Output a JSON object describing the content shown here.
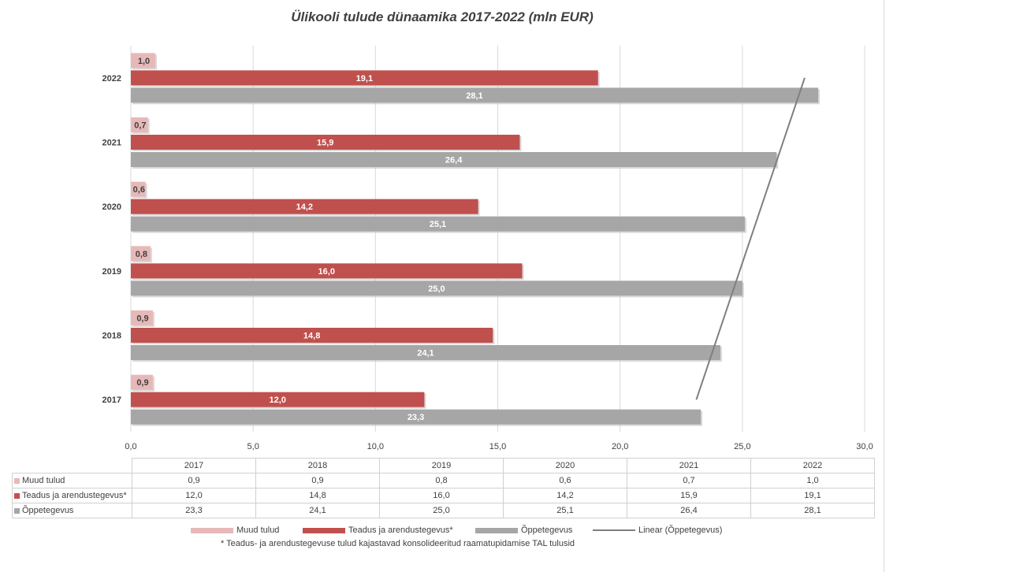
{
  "title": "Ülikooli tulude dünaamika 2017-2022 (mln EUR)",
  "colors": {
    "muud": "#e6b9b8",
    "teadus": "#c0504d",
    "oppe": "#a6a6a6",
    "trend": "#7f7f7f",
    "grid": "#d9d9d9"
  },
  "chart_data": {
    "type": "bar",
    "orientation": "horizontal",
    "title": "Ülikooli tulude dünaamika 2017-2022 (mln EUR)",
    "categories": [
      "2017",
      "2018",
      "2019",
      "2020",
      "2021",
      "2022"
    ],
    "series": [
      {
        "name": "Muud tulud",
        "values": [
          0.9,
          0.9,
          0.8,
          0.6,
          0.7,
          1.0
        ],
        "labels": [
          "0,9",
          "0,9",
          "0,8",
          "0,6",
          "0,7",
          "1,0"
        ]
      },
      {
        "name": "Teadus ja arendustegevus*",
        "values": [
          12.0,
          14.8,
          16.0,
          14.2,
          15.9,
          19.1
        ],
        "labels": [
          "12,0",
          "14,8",
          "16,0",
          "14,2",
          "15,9",
          "19,1"
        ]
      },
      {
        "name": "Õppetegevus",
        "values": [
          23.3,
          24.1,
          25.0,
          25.1,
          26.4,
          28.1
        ],
        "labels": [
          "23,3",
          "24,1",
          "25,0",
          "25,1",
          "26,4",
          "28,1"
        ]
      }
    ],
    "xlim": [
      0,
      30
    ],
    "xticks": [
      "0,0",
      "5,0",
      "10,0",
      "15,0",
      "20,0",
      "25,0",
      "30,0"
    ],
    "trendline": {
      "name": "Linear (Õppetegevus)",
      "series": "Õppetegevus",
      "type": "linear"
    },
    "grid": true,
    "legend": "bottom"
  },
  "table": {
    "years": [
      "2017",
      "2018",
      "2019",
      "2020",
      "2021",
      "2022"
    ],
    "rows": [
      {
        "label": "Muud tulud",
        "values": [
          "0,9",
          "0,9",
          "0,8",
          "0,6",
          "0,7",
          "1,0"
        ]
      },
      {
        "label": "Teadus ja arendustegevus*",
        "values": [
          "12,0",
          "14,8",
          "16,0",
          "14,2",
          "15,9",
          "19,1"
        ]
      },
      {
        "label": "Õppetegevus",
        "values": [
          "23,3",
          "24,1",
          "25,0",
          "25,1",
          "26,4",
          "28,1"
        ]
      }
    ]
  },
  "legend": {
    "muud": "Muud tulud",
    "teadus": "Teadus ja arendustegevus*",
    "oppe": "Õppetegevus",
    "trend": "Linear (Õppetegevus)"
  },
  "footnote": "* Teadus- ja arendustegevuse tulud kajastavad konsolideeritud raamatupidamise TAL tulusid"
}
